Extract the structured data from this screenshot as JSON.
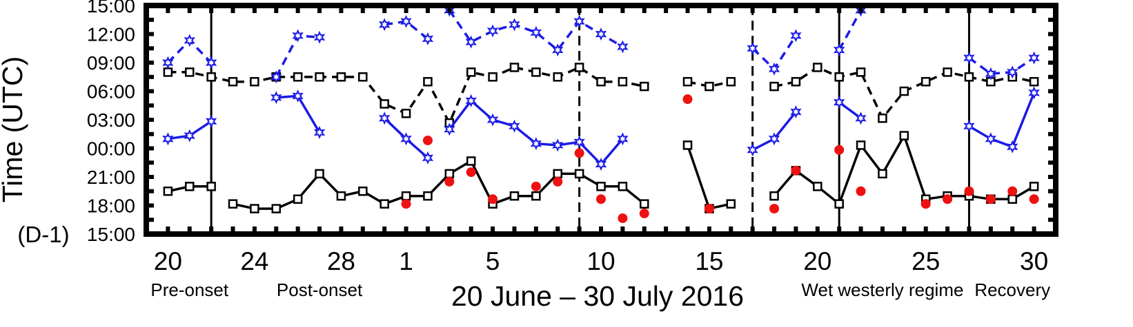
{
  "chart_data": {
    "type": "line",
    "xlabel": "20 June – 30 July 2016",
    "ylabel": "Time (UTC)",
    "ylabel_note": "(D-1)",
    "x_range": [
      "2016-06-19",
      "2016-07-31"
    ],
    "y_range": [
      "15:00",
      "15:00 (+24h)"
    ],
    "y_ticks": [
      "15:00",
      "18:00",
      "21:00",
      "00:00",
      "03:00",
      "06:00",
      "09:00",
      "12:00",
      "15:00"
    ],
    "x_ticks": [
      {
        "date": "2016-06-20",
        "label": "20"
      },
      {
        "date": "2016-06-24",
        "label": "24"
      },
      {
        "date": "2016-06-28",
        "label": "28"
      },
      {
        "date": "2016-07-01",
        "label": "1"
      },
      {
        "date": "2016-07-05",
        "label": "5"
      },
      {
        "date": "2016-07-10",
        "label": "10"
      },
      {
        "date": "2016-07-15",
        "label": "15"
      },
      {
        "date": "2016-07-20",
        "label": "20"
      },
      {
        "date": "2016-07-25",
        "label": "25"
      },
      {
        "date": "2016-07-30",
        "label": "30"
      }
    ],
    "regimes": [
      {
        "label": "Pre-onset",
        "center": "2016-06-21"
      },
      {
        "label": "Post-onset",
        "center": "2016-06-27"
      },
      {
        "label": "Wet westerly regime",
        "center": "2016-07-23"
      },
      {
        "label": "Recovery",
        "center": "2016-07-29"
      }
    ],
    "boundaries": [
      {
        "date": "2016-06-22",
        "style": "solid"
      },
      {
        "date": "2016-07-09",
        "style": "dashed"
      },
      {
        "date": "2016-07-17",
        "style": "dashed"
      },
      {
        "date": "2016-07-21",
        "style": "solid"
      },
      {
        "date": "2016-07-27",
        "style": "solid"
      }
    ],
    "series": [
      {
        "color": "#000000",
        "dash": "solid",
        "marker": "square",
        "points": [
          [
            "2016-06-20",
            "19:30"
          ],
          [
            "2016-06-21",
            "20:00"
          ],
          [
            "2016-06-22",
            "20:00"
          ],
          null,
          [
            "2016-06-23",
            "18:10"
          ],
          [
            "2016-06-24",
            "17:40"
          ],
          [
            "2016-06-25",
            "17:40"
          ],
          [
            "2016-06-26",
            "18:40"
          ],
          [
            "2016-06-27",
            "21:20"
          ],
          [
            "2016-06-28",
            "19:00"
          ],
          [
            "2016-06-29",
            "19:30"
          ],
          [
            "2016-06-30",
            "18:10"
          ],
          [
            "2016-07-01",
            "19:00"
          ],
          [
            "2016-07-02",
            "19:00"
          ],
          [
            "2016-07-03",
            "21:20"
          ],
          [
            "2016-07-04",
            "22:40"
          ],
          [
            "2016-07-05",
            "18:10"
          ],
          [
            "2016-07-06",
            "19:00"
          ],
          [
            "2016-07-07",
            "19:00"
          ],
          [
            "2016-07-08",
            "21:20"
          ],
          [
            "2016-07-09",
            "21:20"
          ],
          [
            "2016-07-10",
            "20:00"
          ],
          [
            "2016-07-11",
            "20:00"
          ],
          [
            "2016-07-12",
            "18:10"
          ],
          null,
          [
            "2016-07-14",
            "00:20"
          ],
          [
            "2016-07-15",
            "17:40"
          ],
          [
            "2016-07-16",
            "18:10"
          ],
          null,
          [
            "2016-07-18",
            "19:00"
          ],
          [
            "2016-07-19",
            "21:40"
          ],
          [
            "2016-07-20",
            "20:00"
          ],
          [
            "2016-07-21",
            "18:10"
          ],
          [
            "2016-07-22",
            "00:20"
          ],
          [
            "2016-07-23",
            "21:20"
          ],
          [
            "2016-07-24",
            "01:20"
          ],
          [
            "2016-07-25",
            "18:40"
          ],
          [
            "2016-07-26",
            "19:00"
          ],
          [
            "2016-07-27",
            "19:00"
          ],
          [
            "2016-07-28",
            "18:40"
          ],
          [
            "2016-07-29",
            "18:40"
          ],
          [
            "2016-07-30",
            "20:00"
          ]
        ]
      },
      {
        "color": "#000000",
        "dash": "dashed",
        "marker": "square",
        "points": [
          [
            "2016-06-20",
            "08:00"
          ],
          [
            "2016-06-21",
            "08:00"
          ],
          [
            "2016-06-22",
            "07:30"
          ],
          [
            "2016-06-23",
            "07:00"
          ],
          [
            "2016-06-24",
            "07:00"
          ],
          [
            "2016-06-25",
            "07:30"
          ],
          [
            "2016-06-26",
            "07:30"
          ],
          [
            "2016-06-27",
            "07:30"
          ],
          [
            "2016-06-28",
            "07:30"
          ],
          [
            "2016-06-29",
            "07:30"
          ],
          [
            "2016-06-30",
            "04:40"
          ],
          [
            "2016-07-01",
            "03:40"
          ],
          [
            "2016-07-02",
            "07:00"
          ],
          [
            "2016-07-03",
            "02:40"
          ],
          [
            "2016-07-04",
            "08:00"
          ],
          [
            "2016-07-05",
            "07:30"
          ],
          [
            "2016-07-06",
            "08:30"
          ],
          [
            "2016-07-07",
            "08:00"
          ],
          [
            "2016-07-08",
            "07:30"
          ],
          [
            "2016-07-09",
            "08:30"
          ],
          [
            "2016-07-10",
            "07:00"
          ],
          [
            "2016-07-11",
            "07:00"
          ],
          [
            "2016-07-12",
            "06:30"
          ],
          null,
          [
            "2016-07-14",
            "07:00"
          ],
          [
            "2016-07-15",
            "06:30"
          ],
          [
            "2016-07-16",
            "07:00"
          ],
          null,
          [
            "2016-07-18",
            "06:30"
          ],
          [
            "2016-07-19",
            "07:00"
          ],
          [
            "2016-07-20",
            "08:30"
          ],
          [
            "2016-07-21",
            "07:30"
          ],
          [
            "2016-07-22",
            "08:00"
          ],
          [
            "2016-07-23",
            "03:10"
          ],
          [
            "2016-07-24",
            "06:00"
          ],
          [
            "2016-07-25",
            "07:00"
          ],
          [
            "2016-07-26",
            "08:00"
          ],
          [
            "2016-07-27",
            "07:30"
          ],
          [
            "2016-07-28",
            "07:00"
          ],
          [
            "2016-07-29",
            "07:30"
          ],
          [
            "2016-07-30",
            "07:00"
          ]
        ]
      },
      {
        "color": "#1a1ae6",
        "dash": "solid",
        "marker": "star",
        "points": [
          [
            "2016-06-20",
            "01:00"
          ],
          [
            "2016-06-21",
            "01:20"
          ],
          [
            "2016-06-22",
            "02:50"
          ],
          null,
          [
            "2016-06-25",
            "05:20"
          ],
          [
            "2016-06-26",
            "05:30"
          ],
          [
            "2016-06-27",
            "01:40"
          ],
          null,
          [
            "2016-06-30",
            "03:10"
          ],
          [
            "2016-07-01",
            "01:00"
          ],
          [
            "2016-07-02",
            "23:00"
          ],
          null,
          [
            "2016-07-03",
            "02:00"
          ],
          [
            "2016-07-04",
            "05:00"
          ],
          [
            "2016-07-05",
            "03:00"
          ],
          [
            "2016-07-06",
            "02:20"
          ],
          [
            "2016-07-07",
            "00:30"
          ],
          [
            "2016-07-08",
            "00:20"
          ],
          [
            "2016-07-09",
            "00:40"
          ],
          [
            "2016-07-10",
            "22:20"
          ],
          [
            "2016-07-11",
            "01:00"
          ],
          null,
          [
            "2016-07-17",
            "23:50"
          ],
          [
            "2016-07-18",
            "01:00"
          ],
          [
            "2016-07-19",
            "03:50"
          ],
          null,
          [
            "2016-07-21",
            "04:50"
          ],
          [
            "2016-07-22",
            "03:10"
          ],
          null,
          [
            "2016-07-27",
            "02:20"
          ],
          [
            "2016-07-28",
            "01:00"
          ],
          [
            "2016-07-29",
            "00:10"
          ],
          [
            "2016-07-30",
            "05:50"
          ]
        ]
      },
      {
        "color": "#1a1ae6",
        "dash": "dashed",
        "marker": "star",
        "points": [
          [
            "2016-06-20",
            "09:00"
          ],
          [
            "2016-06-21",
            "11:20"
          ],
          [
            "2016-06-22",
            "09:00"
          ],
          null,
          [
            "2016-06-25",
            "07:30"
          ],
          [
            "2016-06-26",
            "11:50"
          ],
          [
            "2016-06-27",
            "11:40"
          ],
          null,
          [
            "2016-06-30",
            "13:00"
          ],
          [
            "2016-07-01",
            "13:20"
          ],
          [
            "2016-07-02",
            "11:30"
          ],
          null,
          [
            "2016-07-03",
            "14:30"
          ],
          [
            "2016-07-04",
            "11:10"
          ],
          [
            "2016-07-05",
            "12:20"
          ],
          [
            "2016-07-06",
            "13:00"
          ],
          [
            "2016-07-07",
            "12:10"
          ],
          [
            "2016-07-08",
            "10:20"
          ],
          [
            "2016-07-09",
            "13:20"
          ],
          [
            "2016-07-10",
            "12:00"
          ],
          [
            "2016-07-11",
            "10:40"
          ],
          null,
          [
            "2016-07-17",
            "10:30"
          ],
          [
            "2016-07-18",
            "08:20"
          ],
          [
            "2016-07-19",
            "11:50"
          ],
          null,
          [
            "2016-07-21",
            "10:20"
          ],
          [
            "2016-07-22",
            "14:30"
          ],
          null,
          [
            "2016-07-27",
            "09:30"
          ],
          [
            "2016-07-28",
            "07:50"
          ],
          [
            "2016-07-29",
            "08:00"
          ],
          [
            "2016-07-30",
            "09:30"
          ]
        ]
      },
      {
        "color": "#ee1111",
        "dash": "none",
        "marker": "circle",
        "points": [
          [
            "2016-07-01",
            "18:10"
          ],
          [
            "2016-07-02",
            "00:50"
          ],
          [
            "2016-07-03",
            "20:30"
          ],
          [
            "2016-07-04",
            "21:30"
          ],
          [
            "2016-07-05",
            "18:40"
          ],
          [
            "2016-07-07",
            "20:00"
          ],
          [
            "2016-07-08",
            "20:30"
          ],
          [
            "2016-07-09",
            "23:30"
          ],
          [
            "2016-07-10",
            "18:40"
          ],
          [
            "2016-07-11",
            "16:40"
          ],
          [
            "2016-07-12",
            "17:10"
          ],
          [
            "2016-07-14",
            "05:10"
          ],
          [
            "2016-07-15",
            "17:40"
          ],
          [
            "2016-07-18",
            "17:40"
          ],
          [
            "2016-07-19",
            "21:40"
          ],
          [
            "2016-07-21",
            "23:50"
          ],
          [
            "2016-07-22",
            "19:30"
          ],
          [
            "2016-07-25",
            "18:10"
          ],
          [
            "2016-07-26",
            "18:40"
          ],
          [
            "2016-07-27",
            "19:30"
          ],
          [
            "2016-07-28",
            "18:40"
          ],
          [
            "2016-07-29",
            "19:30"
          ],
          [
            "2016-07-30",
            "18:40"
          ]
        ]
      }
    ]
  }
}
